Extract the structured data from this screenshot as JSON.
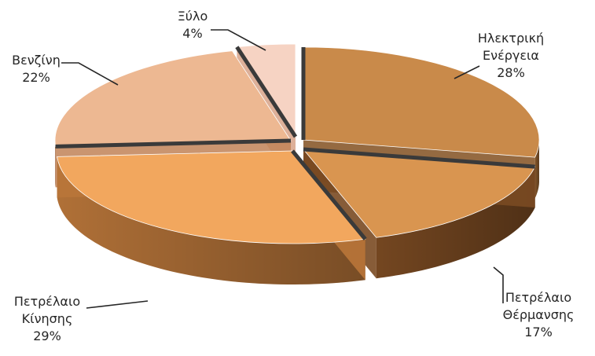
{
  "chart_data": {
    "type": "pie",
    "title": "",
    "slices": [
      {
        "name": "Ηλεκτρική Ενέργεια",
        "value": 28,
        "value_label": "28%",
        "label_lines": [
          "Ηλεκτρική",
          "Ενέργεια",
          "28%"
        ],
        "color": "#C98A4A",
        "side_color": "#8A5A2C"
      },
      {
        "name": "Πετρέλαιο Θέρμανσης",
        "value": 17,
        "value_label": "17%",
        "label_lines": [
          "Πετρέλαιο",
          "Θέρμανσης",
          "17%"
        ],
        "color": "#D99550",
        "side_color": "#7A4A22"
      },
      {
        "name": "Πετρέλαιο Κίνησης",
        "value": 29,
        "value_label": "29%",
        "label_lines": [
          "Πετρέλαιο",
          "Κίνησης",
          "29%"
        ],
        "color": "#F2A75E",
        "side_color": "#B9763A"
      },
      {
        "name": "Βενζίνη",
        "value": 22,
        "value_label": "22%",
        "label_lines": [
          "Βενζίνη",
          "22%"
        ],
        "color": "#EDB892",
        "side_color": "#C48A60"
      },
      {
        "name": "Ξύλο",
        "value": 4,
        "value_label": "4%",
        "label_lines": [
          "Ξύλο",
          "4%"
        ],
        "color": "#F6D3C3",
        "side_color": "#D9A78E"
      }
    ],
    "legend": "none",
    "style": "3d-exploded"
  }
}
